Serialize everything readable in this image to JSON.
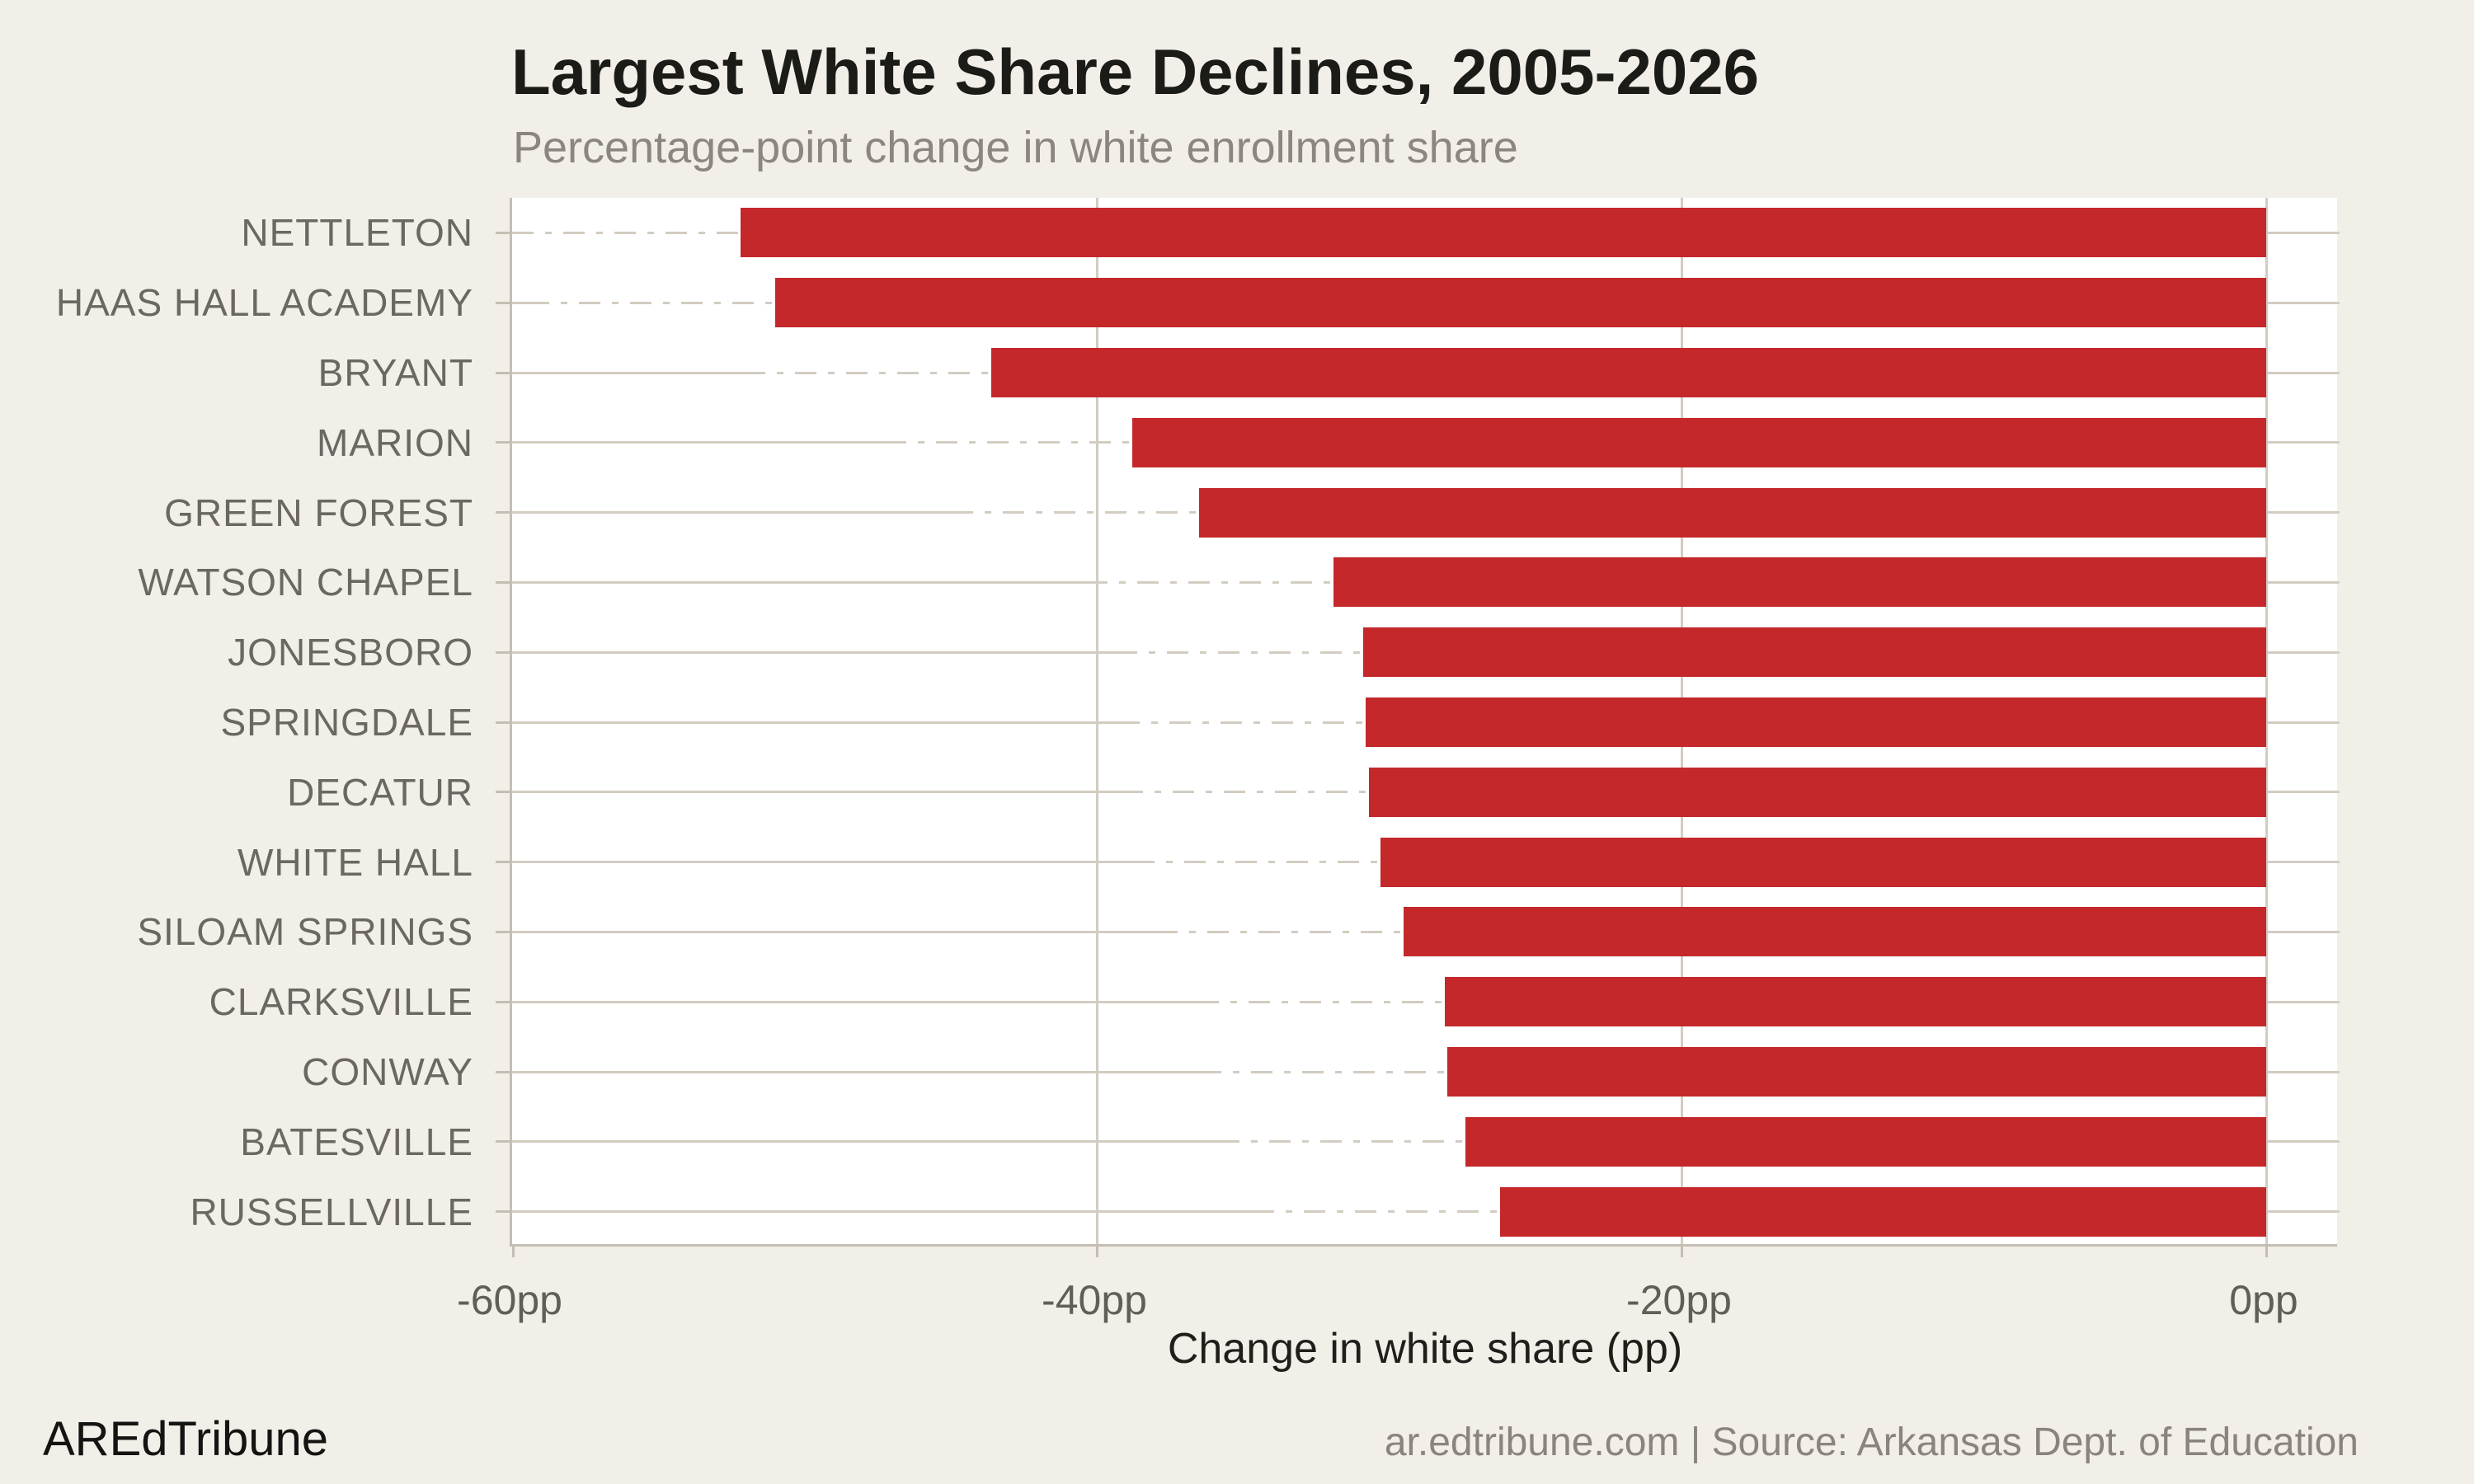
{
  "title": "Largest White Share Declines, 2005-2026",
  "subtitle": "Percentage-point change in white enrollment share",
  "footer": {
    "brand": "AREdTribune",
    "source": "ar.edtribune.com | Source: Arkansas Dept. of Education"
  },
  "chart_data": {
    "type": "bar",
    "orientation": "horizontal",
    "title": "Largest White Share Declines, 2005-2026",
    "subtitle": "Percentage-point change in white enrollment share",
    "xlabel": "Change in white share (pp)",
    "ylabel": "",
    "xlim": [
      -60,
      2.5
    ],
    "grid": true,
    "categories": [
      "NETTLETON",
      "HAAS HALL ACADEMY",
      "BRYANT",
      "MARION",
      "GREEN FOREST",
      "WATSON CHAPEL",
      "JONESBORO",
      "SPRINGDALE",
      "DECATUR",
      "WHITE HALL",
      "SILOAM SPRINGS",
      "CLARKSVILLE",
      "CONWAY",
      "BATESVILLE",
      "RUSSELLVILLE"
    ],
    "values": [
      -52.2,
      -51.0,
      -43.6,
      -38.8,
      -36.5,
      -31.9,
      -30.9,
      -30.8,
      -30.7,
      -30.3,
      -29.5,
      -28.1,
      -28.0,
      -27.4,
      -26.2
    ],
    "x_ticks": [
      {
        "value": -60,
        "label": "-60pp"
      },
      {
        "value": -40,
        "label": "-40pp"
      },
      {
        "value": -20,
        "label": "-20pp"
      },
      {
        "value": 0,
        "label": "0pp"
      }
    ],
    "colors": {
      "bar": "#c4282b",
      "page_bg": "#f2efe9",
      "plot_bg": "#ffffff",
      "gridline": "#d3ccc1",
      "axis": "#c4beb3",
      "title": "#1b1b18",
      "subtitle": "#8b8780",
      "category_label": "#6b6762",
      "tick_label": "#615e57",
      "xlabel": "#1f1e1b",
      "brand": "#141412",
      "source": "#89857e"
    }
  }
}
